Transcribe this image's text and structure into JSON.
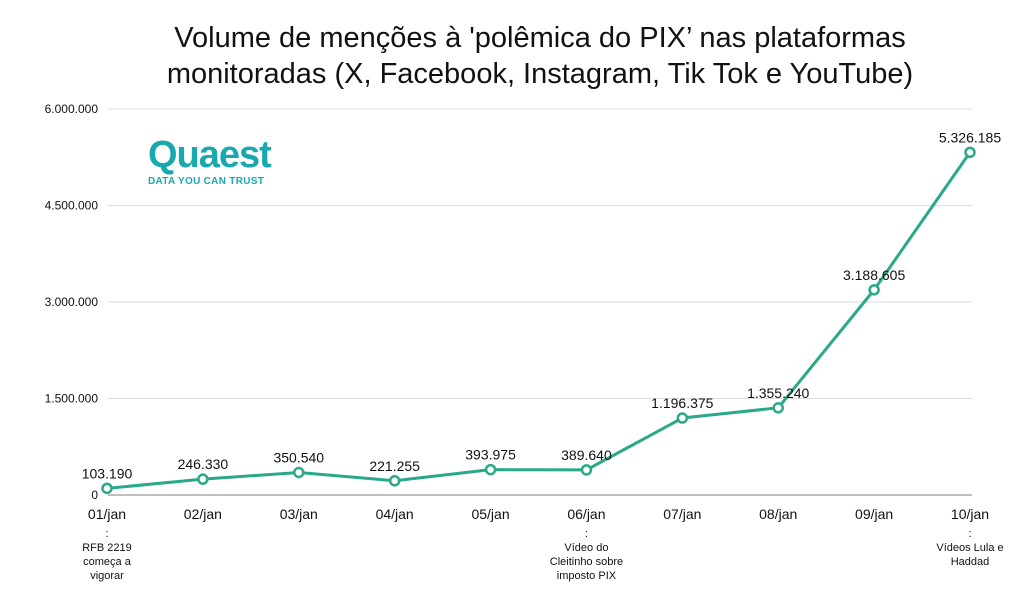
{
  "chart_data": {
    "type": "line",
    "title_lines": [
      "Volume de menções à 'polêmica do PIX’ nas plataformas",
      "monitoradas (X, Facebook, Instagram, Tik Tok e YouTube)"
    ],
    "categories": [
      "01/jan",
      "02/jan",
      "03/jan",
      "04/jan",
      "05/jan",
      "06/jan",
      "07/jan",
      "08/jan",
      "09/jan",
      "10/jan"
    ],
    "values": [
      103190,
      246330,
      350540,
      221255,
      393975,
      389640,
      1196375,
      1355240,
      3188605,
      5326185
    ],
    "value_labels": [
      "103.190",
      "246.330",
      "350.540",
      "221.255",
      "393.975",
      "389.640",
      "1.196.375",
      "1.355.240",
      "3.188.605",
      "5.326.185"
    ],
    "annotations": [
      {
        "index": 0,
        "lines": [
          ":",
          "RFB 2219",
          "começa a",
          "vigorar"
        ]
      },
      {
        "index": 5,
        "lines": [
          ":",
          "Vídeo do",
          "Cleitinho sobre",
          "imposto PIX"
        ]
      },
      {
        "index": 9,
        "lines": [
          ":",
          "Vídeos Lula e",
          "Haddad"
        ]
      }
    ],
    "yticks": [
      0,
      1500000,
      3000000,
      4500000,
      6000000
    ],
    "ytick_labels": [
      "0",
      "1.500.000",
      "3.000.000",
      "4.500.000",
      "6.000.000"
    ],
    "ylim": [
      0,
      6000000
    ],
    "grid": true,
    "line_color": "#2aa98a"
  },
  "logo": {
    "name": "Quaest",
    "tagline": "DATA YOU CAN TRUST"
  }
}
